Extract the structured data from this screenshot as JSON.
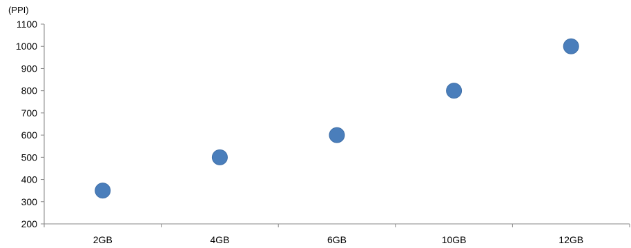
{
  "chart_data": {
    "type": "scatter",
    "title": "",
    "xlabel": "",
    "ylabel": "",
    "y_unit": "(PPI)",
    "categories": [
      "2GB",
      "4GB",
      "6GB",
      "10GB",
      "12GB"
    ],
    "series": [
      {
        "values": [
          350,
          500,
          600,
          800,
          1000
        ],
        "color": "#4a7ebb"
      }
    ],
    "ylim": [
      200,
      1100
    ],
    "y_ticks": [
      200,
      300,
      400,
      500,
      600,
      700,
      800,
      900,
      1000,
      1100
    ],
    "grid": false,
    "legend": "none"
  }
}
